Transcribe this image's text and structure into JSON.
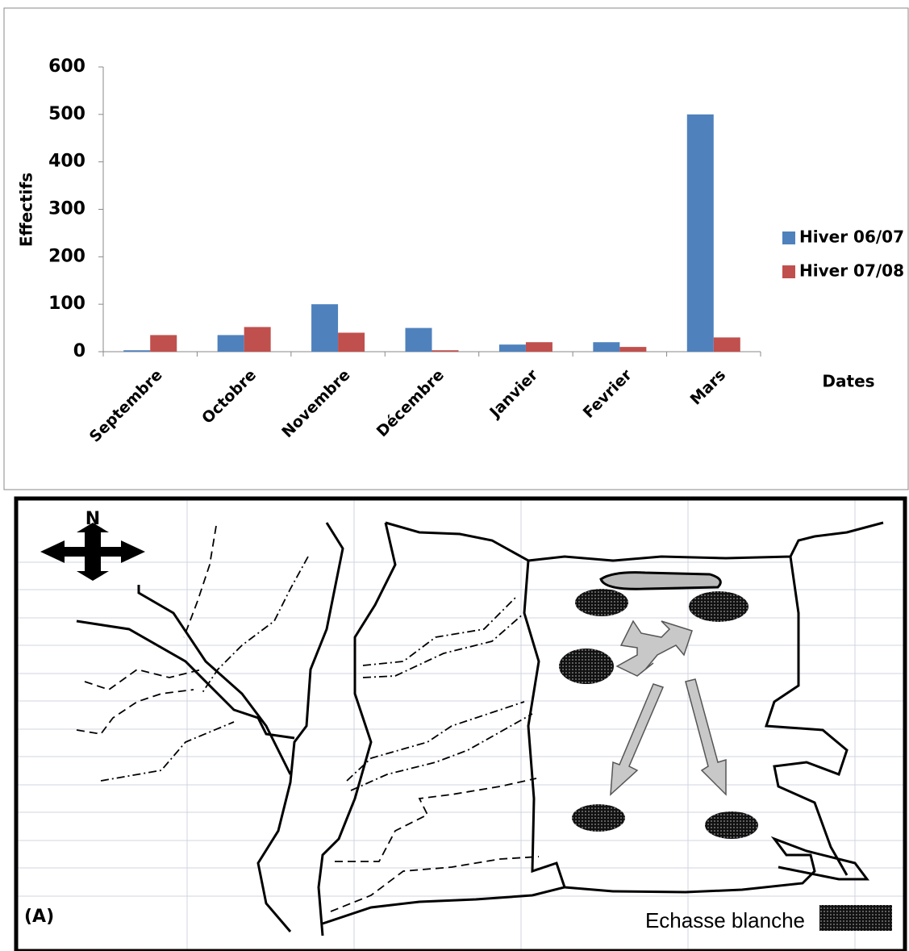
{
  "chart_data": {
    "type": "bar",
    "y_label": "Effectifs",
    "x_label": "Dates",
    "categories": [
      "Septembre",
      "Octobre",
      "Novembre",
      "Décembre",
      "Janvier",
      "Fevrier",
      "Mars"
    ],
    "series": [
      {
        "name": "Hiver 06/07",
        "color": "#4f81bd",
        "values": [
          3,
          35,
          100,
          50,
          15,
          20,
          500
        ]
      },
      {
        "name": "Hiver 07/08",
        "color": "#c0504d",
        "values": [
          35,
          52,
          40,
          3,
          20,
          10,
          30
        ]
      }
    ],
    "ylim": [
      0,
      600
    ],
    "yticks": [
      0,
      100,
      200,
      300,
      400,
      500,
      600
    ],
    "grid": false,
    "legend": "right"
  },
  "map": {
    "north": "N",
    "panel": "(A)",
    "legend": "Echasse blanche"
  }
}
